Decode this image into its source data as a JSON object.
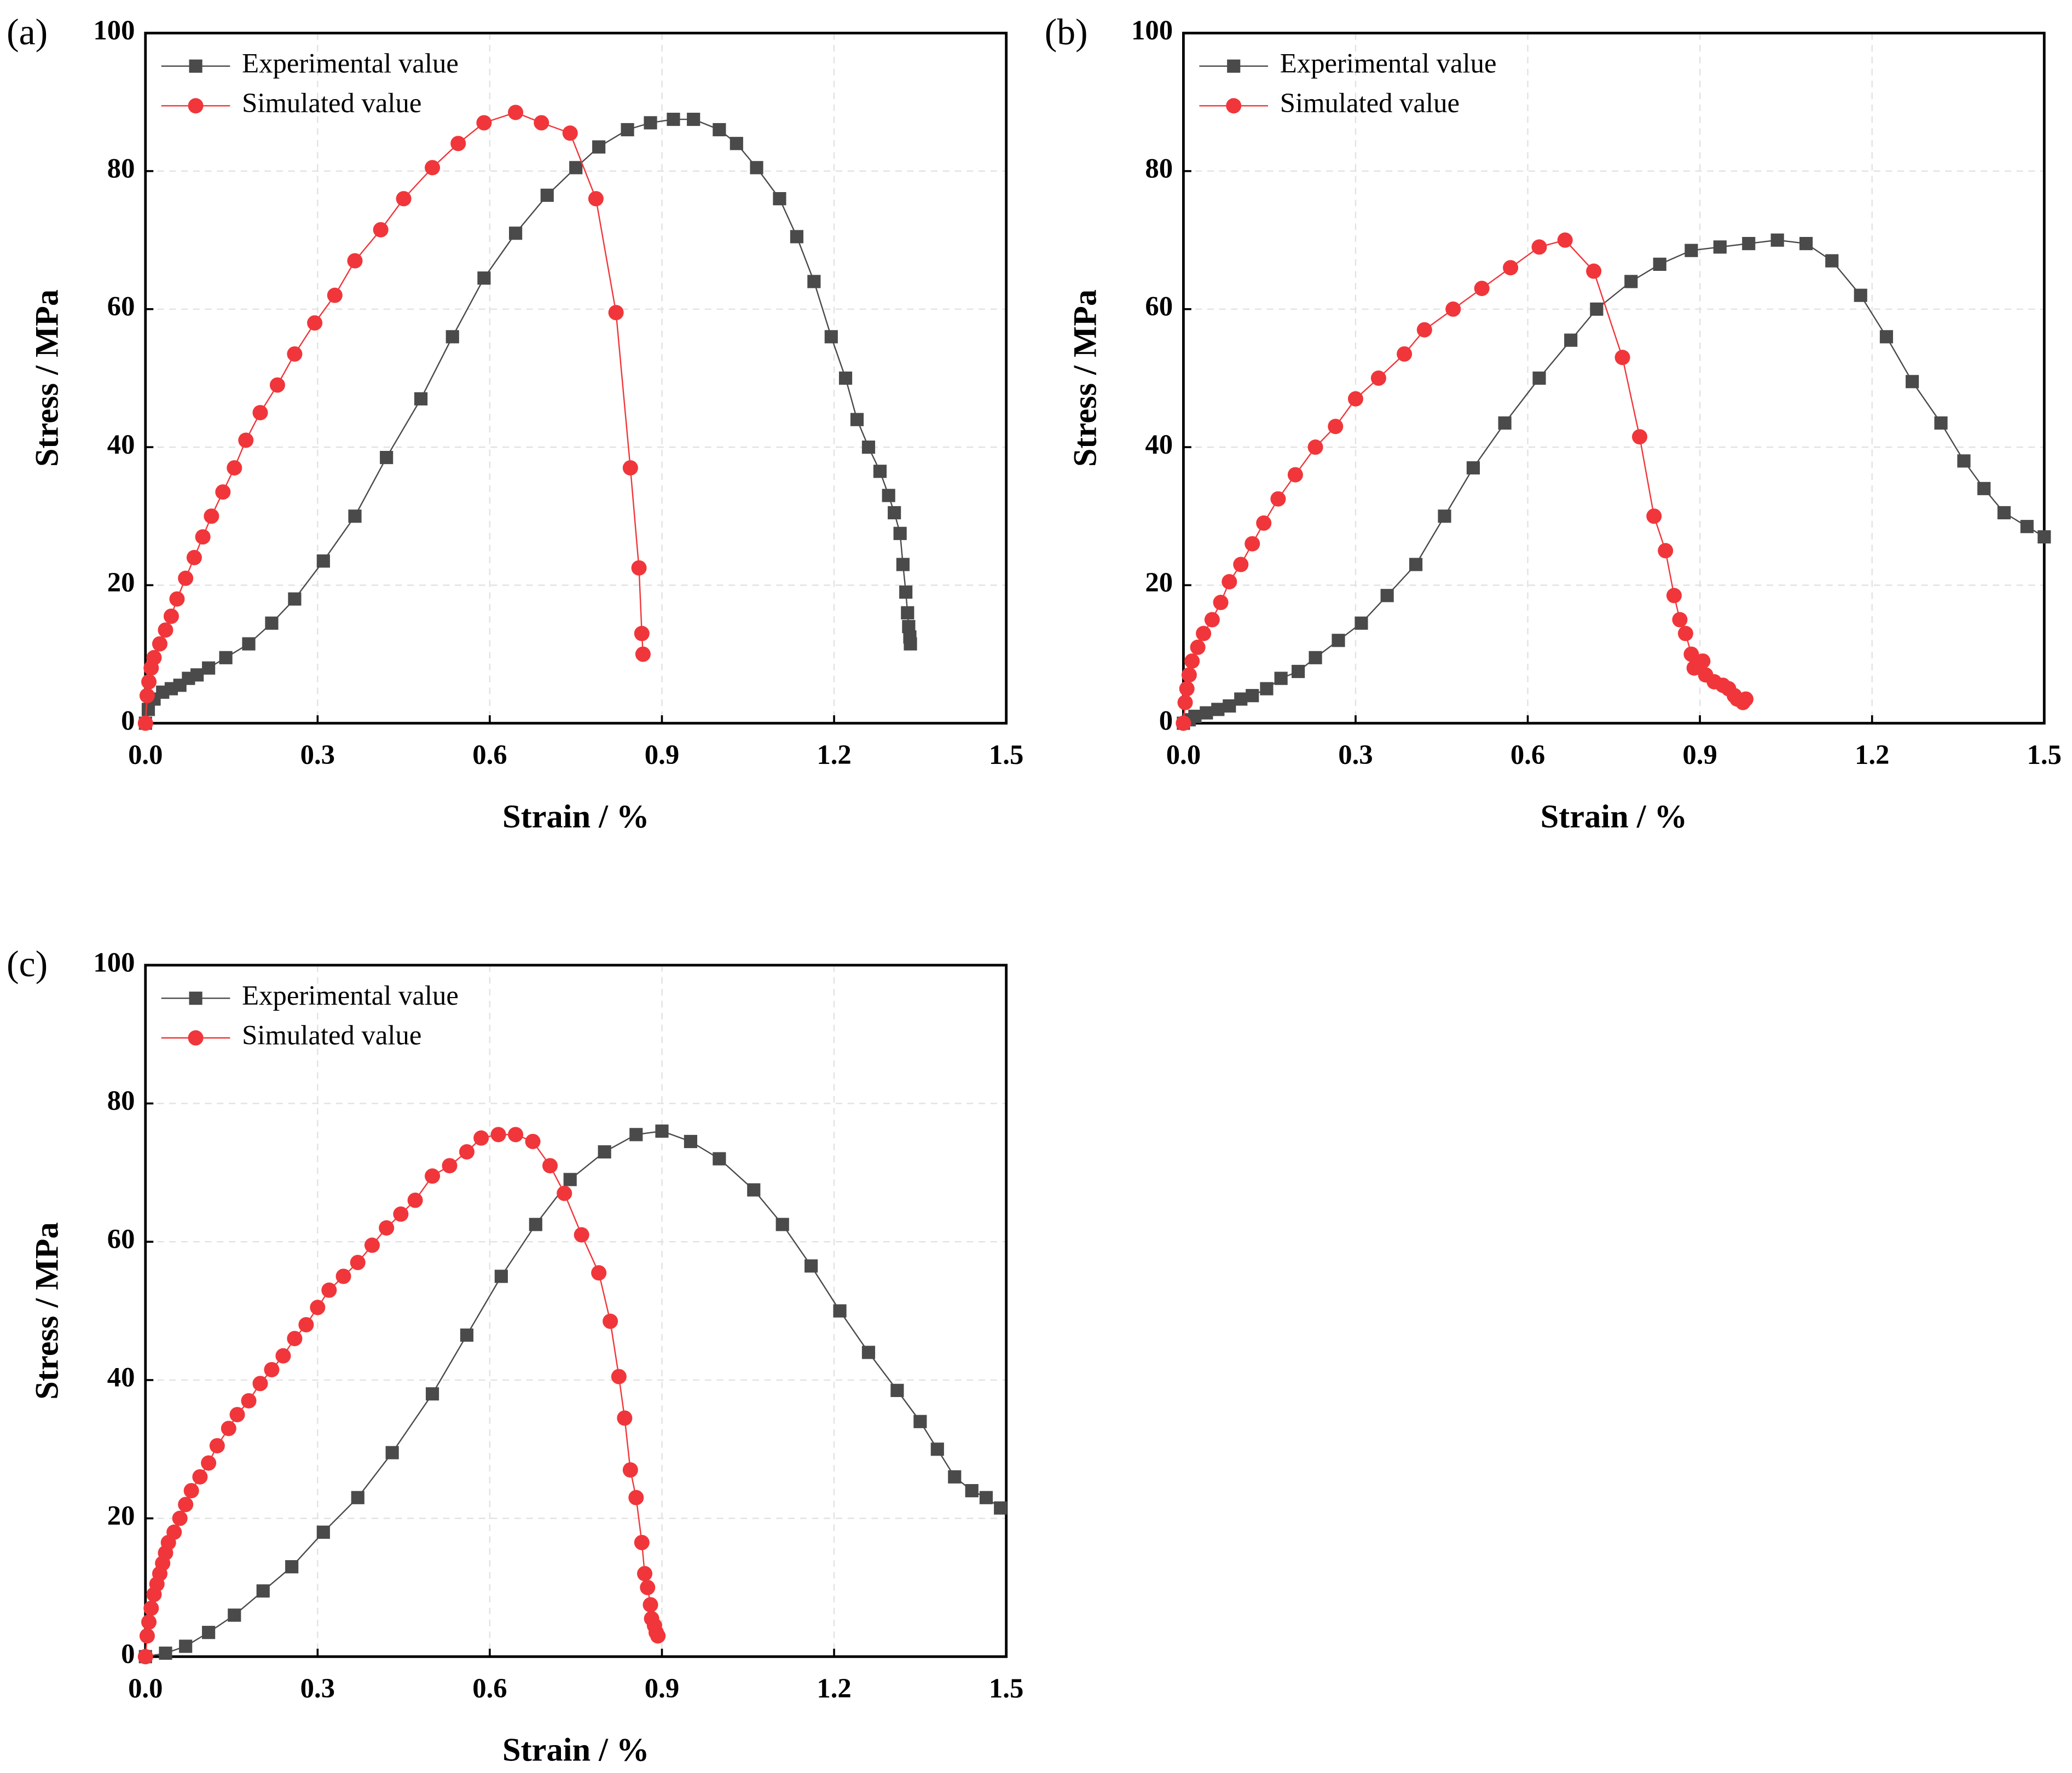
{
  "chart_data": [
    {
      "type": "line",
      "label": "(a)",
      "xlabel": "Strain / %",
      "ylabel": "Stress / MPa",
      "xlim": [
        0,
        1.5
      ],
      "xticks": [
        {
          "value": 0,
          "label": "0.0"
        },
        0.3,
        0.6,
        0.9,
        1.2,
        1.5
      ],
      "ylim": [
        0,
        100
      ],
      "yticks": [
        0,
        20,
        40,
        60,
        80,
        100
      ],
      "grid": true,
      "legend": "upper left",
      "series": [
        {
          "name": "Experimental value",
          "color": "#4a4a4a",
          "marker": "square",
          "x": [
            0,
            0.005,
            0.015,
            0.03,
            0.045,
            0.06,
            0.075,
            0.09,
            0.11,
            0.14,
            0.18,
            0.22,
            0.26,
            0.31,
            0.365,
            0.42,
            0.48,
            0.535,
            0.59,
            0.645,
            0.7,
            0.75,
            0.79,
            0.84,
            0.88,
            0.92,
            0.955,
            1.0,
            1.03,
            1.065,
            1.105,
            1.135,
            1.165,
            1.195,
            1.22,
            1.24,
            1.26,
            1.28,
            1.295,
            1.305,
            1.315,
            1.32,
            1.325,
            1.328,
            1.33,
            1.332,
            1.333
          ],
          "values": [
            0,
            2,
            3.5,
            4.5,
            5,
            5.5,
            6.5,
            7,
            8,
            9.5,
            11.5,
            14.5,
            18,
            23.5,
            30,
            38.5,
            47,
            56,
            64.5,
            71,
            76.5,
            80.5,
            83.5,
            86,
            87,
            87.5,
            87.5,
            86,
            84,
            80.5,
            76,
            70.5,
            64,
            56,
            50,
            44,
            40,
            36.5,
            33,
            30.5,
            27.5,
            23,
            19,
            16,
            14,
            12.5,
            11.5
          ]
        },
        {
          "name": "Simulated value",
          "color": "#f0363a",
          "marker": "circle",
          "x": [
            0,
            0.003,
            0.006,
            0.01,
            0.015,
            0.025,
            0.035,
            0.045,
            0.055,
            0.07,
            0.085,
            0.1,
            0.115,
            0.135,
            0.155,
            0.175,
            0.2,
            0.23,
            0.26,
            0.295,
            0.33,
            0.365,
            0.41,
            0.45,
            0.5,
            0.545,
            0.59,
            0.645,
            0.69,
            0.74,
            0.785,
            0.82,
            0.845,
            0.86,
            0.865,
            0.867
          ],
          "values": [
            0,
            4,
            6,
            8,
            9.5,
            11.5,
            13.5,
            15.5,
            18,
            21,
            24,
            27,
            30,
            33.5,
            37,
            41,
            45,
            49,
            53.5,
            58,
            62,
            67,
            71.5,
            76,
            80.5,
            84,
            87,
            88.5,
            87,
            85.5,
            76,
            59.5,
            37,
            22.5,
            13,
            10
          ]
        }
      ]
    },
    {
      "type": "line",
      "label": "(b)",
      "xlabel": "Strain / %",
      "ylabel": "Stress / MPa",
      "xlim": [
        0,
        1.5
      ],
      "xticks": [
        {
          "value": 0,
          "label": "0.0"
        },
        0.3,
        0.6,
        0.9,
        1.2,
        1.5
      ],
      "ylim": [
        0,
        100
      ],
      "yticks": [
        0,
        20,
        40,
        60,
        80,
        100
      ],
      "grid": true,
      "legend": "upper left",
      "series": [
        {
          "name": "Experimental value",
          "color": "#4a4a4a",
          "marker": "square",
          "x": [
            0,
            0.01,
            0.02,
            0.04,
            0.06,
            0.08,
            0.1,
            0.12,
            0.145,
            0.17,
            0.2,
            0.23,
            0.27,
            0.31,
            0.355,
            0.405,
            0.455,
            0.505,
            0.56,
            0.62,
            0.675,
            0.72,
            0.78,
            0.83,
            0.885,
            0.935,
            0.985,
            1.035,
            1.085,
            1.13,
            1.18,
            1.225,
            1.27,
            1.32,
            1.36,
            1.395,
            1.43,
            1.47,
            1.5
          ],
          "values": [
            0,
            0.5,
            1,
            1.5,
            2,
            2.5,
            3.5,
            4,
            5,
            6.5,
            7.5,
            9.5,
            12,
            14.5,
            18.5,
            23,
            30,
            37,
            43.5,
            50,
            55.5,
            60,
            64,
            66.5,
            68.5,
            69,
            69.5,
            70,
            69.5,
            67,
            62,
            56,
            49.5,
            43.5,
            38,
            34,
            30.5,
            28.5,
            27
          ]
        },
        {
          "name": "Simulated value",
          "color": "#f0363a",
          "marker": "circle",
          "x": [
            0,
            0.003,
            0.006,
            0.01,
            0.015,
            0.025,
            0.035,
            0.05,
            0.065,
            0.08,
            0.1,
            0.12,
            0.14,
            0.165,
            0.195,
            0.23,
            0.265,
            0.3,
            0.34,
            0.385,
            0.42,
            0.47,
            0.52,
            0.57,
            0.62,
            0.665,
            0.715,
            0.765,
            0.795,
            0.82,
            0.84,
            0.855,
            0.865,
            0.875,
            0.885,
            0.89,
            0.905,
            0.91,
            0.925,
            0.94,
            0.95,
            0.96,
            0.965,
            0.975,
            0.98
          ],
          "values": [
            0,
            3,
            5,
            7,
            9,
            11,
            13,
            15,
            17.5,
            20.5,
            23,
            26,
            29,
            32.5,
            36,
            40,
            43,
            47,
            50,
            53.5,
            57,
            60,
            63,
            66,
            69,
            70,
            65.5,
            53,
            41.5,
            30,
            25,
            18.5,
            15,
            13,
            10,
            8,
            9,
            7,
            6,
            5.5,
            5,
            4,
            3.5,
            3,
            3.5
          ]
        }
      ]
    },
    {
      "type": "line",
      "label": "(c)",
      "xlabel": "Strain / %",
      "ylabel": "Stress / MPa",
      "xlim": [
        0,
        1.5
      ],
      "xticks": [
        {
          "value": 0,
          "label": "0.0"
        },
        0.3,
        0.6,
        0.9,
        1.2,
        1.5
      ],
      "ylim": [
        0,
        100
      ],
      "yticks": [
        0,
        20,
        40,
        60,
        80,
        100
      ],
      "grid": true,
      "legend": "upper left",
      "series": [
        {
          "name": "Experimental value",
          "color": "#4a4a4a",
          "marker": "square",
          "x": [
            0,
            0.035,
            0.07,
            0.11,
            0.155,
            0.205,
            0.255,
            0.31,
            0.37,
            0.43,
            0.5,
            0.56,
            0.62,
            0.68,
            0.74,
            0.8,
            0.855,
            0.9,
            0.95,
            1.0,
            1.06,
            1.11,
            1.16,
            1.21,
            1.26,
            1.31,
            1.35,
            1.38,
            1.41,
            1.44,
            1.465,
            1.49
          ],
          "values": [
            0,
            0.5,
            1.5,
            3.5,
            6,
            9.5,
            13,
            18,
            23,
            29.5,
            38,
            46.5,
            55,
            62.5,
            69,
            73,
            75.5,
            76,
            74.5,
            72,
            67.5,
            62.5,
            56.5,
            50,
            44,
            38.5,
            34,
            30,
            26,
            24,
            23,
            21.5
          ]
        },
        {
          "name": "Simulated value",
          "color": "#f0363a",
          "marker": "circle",
          "x": [
            0,
            0.003,
            0.006,
            0.01,
            0.015,
            0.02,
            0.025,
            0.03,
            0.035,
            0.04,
            0.05,
            0.06,
            0.07,
            0.08,
            0.095,
            0.11,
            0.125,
            0.145,
            0.16,
            0.18,
            0.2,
            0.22,
            0.24,
            0.26,
            0.28,
            0.3,
            0.32,
            0.345,
            0.37,
            0.395,
            0.42,
            0.445,
            0.47,
            0.5,
            0.53,
            0.56,
            0.585,
            0.615,
            0.645,
            0.675,
            0.705,
            0.73,
            0.76,
            0.79,
            0.81,
            0.825,
            0.835,
            0.845,
            0.855,
            0.865,
            0.87,
            0.875,
            0.88,
            0.882,
            0.887,
            0.89,
            0.893
          ],
          "values": [
            0,
            3,
            5,
            7,
            9,
            10.5,
            12,
            13.5,
            15,
            16.5,
            18,
            20,
            22,
            24,
            26,
            28,
            30.5,
            33,
            35,
            37,
            39.5,
            41.5,
            43.5,
            46,
            48,
            50.5,
            53,
            55,
            57,
            59.5,
            62,
            64,
            66,
            69.5,
            71,
            73,
            75,
            75.5,
            75.5,
            74.5,
            71,
            67,
            61,
            55.5,
            48.5,
            40.5,
            34.5,
            27,
            23,
            16.5,
            12,
            10,
            7.5,
            5.5,
            4.5,
            3.5,
            3
          ]
        }
      ]
    }
  ]
}
